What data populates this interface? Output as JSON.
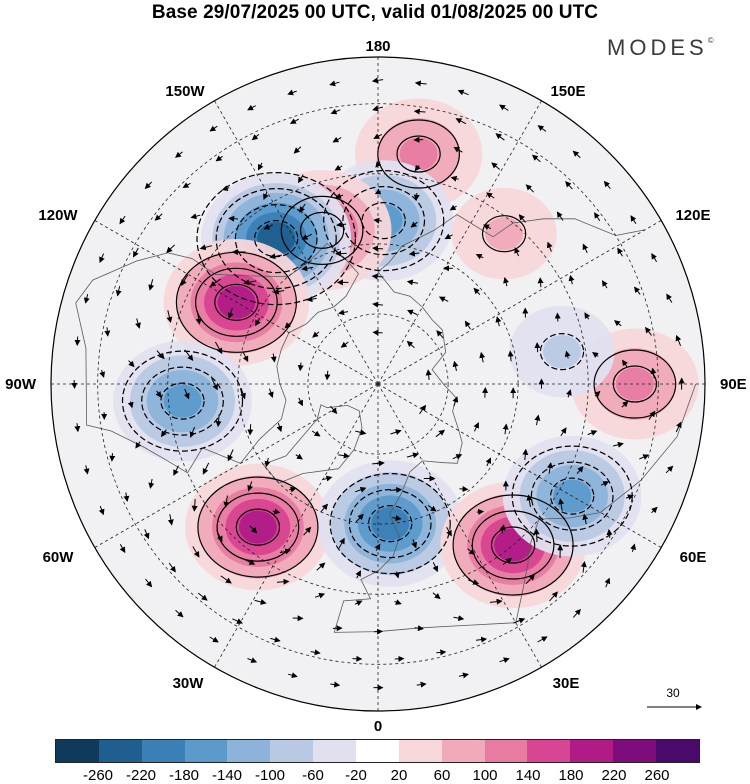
{
  "title": "Base 29/07/2025 00 UTC, valid 01/08/2025 00 UTC",
  "brand": "MODES",
  "brand_mark": "©",
  "longitude_labels": {
    "top": "180",
    "bottom": "0",
    "left": "90W",
    "right": "90E",
    "upper_left_1": "150W",
    "upper_left_2": "120W",
    "upper_right_1": "150E",
    "upper_right_2": "120E",
    "lower_left_1": "60W",
    "lower_left_2": "30W",
    "lower_right_1": "60E",
    "lower_right_2": "30E"
  },
  "vector_reference": {
    "label": "30",
    "value": 30
  },
  "colorbar": {
    "colors": [
      "#0f3a5c",
      "#1f5f8f",
      "#3a7fb5",
      "#5b9bcc",
      "#8db3da",
      "#b9c9e3",
      "#e0e0ef",
      "#ffffff",
      "#f7d7da",
      "#f0aab9",
      "#e77ba1",
      "#d84592",
      "#b01b86",
      "#7e0c7a",
      "#4a0a6a"
    ],
    "ticks": [
      "-260",
      "-220",
      "-180",
      "-140",
      "-100",
      "-60",
      "-20",
      "20",
      "60",
      "100",
      "140",
      "180",
      "220",
      "260"
    ]
  },
  "anomaly_centers": [
    {
      "lon": 170,
      "lat": 40,
      "value": 120
    },
    {
      "lon": 140,
      "lat": 48,
      "value": 60
    },
    {
      "lon": 178,
      "lat": 55,
      "value": -160
    },
    {
      "lon": -160,
      "lat": 55,
      "value": 140
    },
    {
      "lon": -145,
      "lat": 52,
      "value": -220
    },
    {
      "lon": -120,
      "lat": 55,
      "value": 200
    },
    {
      "lon": -85,
      "lat": 48,
      "value": -160
    },
    {
      "lon": -40,
      "lat": 50,
      "value": 180
    },
    {
      "lon": 5,
      "lat": 60,
      "value": -180
    },
    {
      "lon": 40,
      "lat": 45,
      "value": 200
    },
    {
      "lon": 60,
      "lat": 42,
      "value": -160
    },
    {
      "lon": 90,
      "lat": 35,
      "value": 120
    },
    {
      "lon": 100,
      "lat": 50,
      "value": -60
    }
  ]
}
